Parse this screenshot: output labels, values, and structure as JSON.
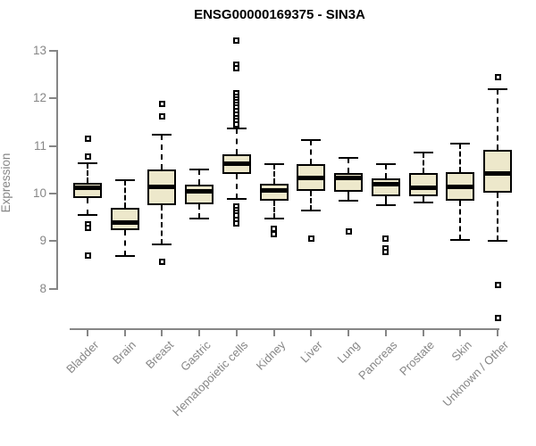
{
  "page": {
    "title": "ENSG00000169375 - SIN3A"
  },
  "chart_data": {
    "type": "boxplot",
    "title": "ENSG00000169375 - SIN3A",
    "xlabel": "",
    "ylabel": "Expression",
    "ylim": [
      7.3,
      13.4
    ],
    "yticks": [
      8,
      9,
      10,
      11,
      12,
      13
    ],
    "grid": false,
    "legend": "none",
    "axis_color": "#868686",
    "box_fill": "#ede8cb",
    "box_border": "#000000",
    "categories": [
      "Bladder",
      "Brain",
      "Breast",
      "Gastric",
      "Hematopoietic cells",
      "Kidney",
      "Liver",
      "Lung",
      "Pancreas",
      "Prostate",
      "Skin",
      "Unknown / Other"
    ],
    "series": [
      {
        "name": "Bladder",
        "low": 9.55,
        "q1": 9.9,
        "median": 10.12,
        "q3": 10.22,
        "high": 10.63,
        "outliers": [
          11.15,
          10.78,
          9.35,
          9.27,
          8.7
        ]
      },
      {
        "name": "Brain",
        "low": 8.68,
        "q1": 9.22,
        "median": 9.38,
        "q3": 9.7,
        "high": 10.28,
        "outliers": []
      },
      {
        "name": "Breast",
        "low": 8.92,
        "q1": 9.76,
        "median": 10.13,
        "q3": 10.5,
        "high": 11.23,
        "outliers": [
          11.88,
          11.62,
          8.57
        ]
      },
      {
        "name": "Gastric",
        "low": 9.48,
        "q1": 9.77,
        "median": 10.05,
        "q3": 10.18,
        "high": 10.5,
        "outliers": []
      },
      {
        "name": "Hematopoietic cells",
        "low": 9.89,
        "q1": 10.42,
        "median": 10.62,
        "q3": 10.83,
        "high": 11.37,
        "outliers": [
          13.22,
          12.7,
          12.63,
          12.1,
          12.04,
          11.98,
          11.92,
          11.86,
          11.8,
          11.74,
          11.65,
          11.58,
          11.52,
          11.45,
          9.73,
          9.66,
          9.6,
          9.53,
          9.44,
          9.37
        ]
      },
      {
        "name": "Kidney",
        "low": 9.48,
        "q1": 9.84,
        "median": 10.07,
        "q3": 10.2,
        "high": 10.62,
        "outliers": [
          9.26,
          9.14
        ]
      },
      {
        "name": "Liver",
        "low": 9.65,
        "q1": 10.05,
        "median": 10.32,
        "q3": 10.62,
        "high": 11.12,
        "outliers": [
          9.06
        ]
      },
      {
        "name": "Lung",
        "low": 9.84,
        "q1": 10.03,
        "median": 10.33,
        "q3": 10.43,
        "high": 10.74,
        "outliers": [
          9.2
        ]
      },
      {
        "name": "Pancreas",
        "low": 9.76,
        "q1": 9.95,
        "median": 10.19,
        "q3": 10.31,
        "high": 10.61,
        "outliers": [
          9.06,
          8.85,
          8.76
        ]
      },
      {
        "name": "Prostate",
        "low": 9.81,
        "q1": 9.95,
        "median": 10.12,
        "q3": 10.43,
        "high": 10.87,
        "outliers": []
      },
      {
        "name": "Skin",
        "low": 9.03,
        "q1": 9.84,
        "median": 10.13,
        "q3": 10.45,
        "high": 11.04,
        "outliers": []
      },
      {
        "name": "Unknown / Other",
        "low": 9.01,
        "q1": 10.01,
        "median": 10.42,
        "q3": 10.92,
        "high": 12.2,
        "outliers": [
          12.45,
          8.07,
          7.38
        ]
      }
    ]
  }
}
